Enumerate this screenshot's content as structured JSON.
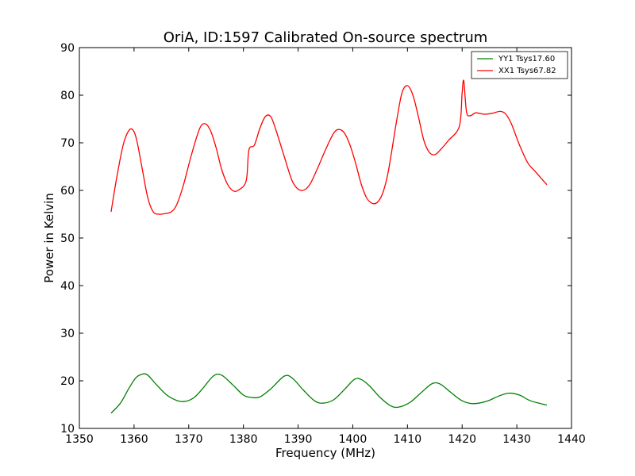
{
  "chart_data": {
    "type": "line",
    "title": "OriA, ID:1597 Calibrated On-source spectrum",
    "xlabel": "Frequency (MHz)",
    "ylabel": "Power in Kelvin",
    "xlim": [
      1350,
      1440
    ],
    "ylim": [
      10,
      90
    ],
    "xticks": [
      1350,
      1360,
      1370,
      1380,
      1390,
      1400,
      1410,
      1420,
      1430,
      1440
    ],
    "yticks": [
      10,
      20,
      30,
      40,
      50,
      60,
      70,
      80,
      90
    ],
    "grid": false,
    "legend_position": "top-right",
    "series": [
      {
        "name": "YY1 Tsys17.60",
        "color": "#008000",
        "x": [
          1355.8,
          1357.5,
          1359.0,
          1360.3,
          1361.5,
          1362.5,
          1364.0,
          1366.0,
          1368.0,
          1369.5,
          1371.0,
          1372.5,
          1374.5,
          1376.0,
          1378.0,
          1380.0,
          1381.5,
          1383.0,
          1385.0,
          1387.5,
          1389.0,
          1391.0,
          1393.0,
          1394.5,
          1396.5,
          1398.5,
          1400.3,
          1401.5,
          1403.0,
          1405.0,
          1407.0,
          1408.5,
          1410.5,
          1412.5,
          1414.5,
          1416.0,
          1418.0,
          1420.0,
          1422.0,
          1424.5,
          1426.5,
          1428.5,
          1430.5,
          1432.5,
          1435.5
        ],
        "y": [
          13.2,
          15.3,
          18.3,
          20.6,
          21.4,
          21.2,
          19.3,
          17.0,
          15.8,
          15.7,
          16.5,
          18.3,
          21.0,
          21.2,
          19.2,
          17.0,
          16.5,
          16.6,
          18.3,
          21.0,
          20.5,
          18.0,
          15.8,
          15.3,
          16.0,
          18.2,
          20.3,
          20.3,
          19.0,
          16.5,
          14.7,
          14.5,
          15.5,
          17.5,
          19.4,
          19.3,
          17.5,
          15.8,
          15.2,
          15.7,
          16.7,
          17.4,
          17.0,
          15.8,
          14.9
        ]
      },
      {
        "name": "XX1 Tsys67.82",
        "color": "#ff0000",
        "x": [
          1355.8,
          1356.8,
          1358.0,
          1359.0,
          1359.8,
          1360.5,
          1361.5,
          1362.5,
          1363.5,
          1364.5,
          1365.5,
          1366.8,
          1367.8,
          1369.0,
          1370.5,
          1372.0,
          1373.0,
          1374.0,
          1375.0,
          1376.0,
          1377.0,
          1378.0,
          1379.0,
          1380.5,
          1381.0,
          1382.0,
          1383.0,
          1384.0,
          1385.0,
          1386.0,
          1387.5,
          1389.0,
          1390.5,
          1392.0,
          1393.5,
          1395.0,
          1396.5,
          1397.5,
          1398.5,
          1399.5,
          1400.5,
          1401.5,
          1402.5,
          1403.5,
          1404.5,
          1405.5,
          1406.5,
          1408.0,
          1409.0,
          1410.0,
          1411.0,
          1412.0,
          1413.0,
          1414.0,
          1415.0,
          1416.0,
          1417.5,
          1419.5,
          1420.0,
          1420.3,
          1420.8,
          1421.5,
          1422.5,
          1424.0,
          1425.5,
          1427.0,
          1428.0,
          1429.0,
          1430.5,
          1432.0,
          1433.5,
          1435.5
        ],
        "y": [
          55.5,
          62.5,
          69.5,
          72.5,
          72.7,
          70.5,
          64.5,
          58.5,
          55.5,
          55.0,
          55.1,
          55.5,
          57.0,
          61.0,
          67.5,
          73.0,
          74.0,
          72.5,
          69.0,
          64.5,
          61.5,
          60.0,
          60.0,
          62.0,
          68.5,
          69.5,
          73.0,
          75.5,
          75.5,
          72.5,
          67.0,
          61.8,
          60.0,
          61.0,
          64.5,
          68.5,
          72.0,
          72.8,
          72.0,
          69.5,
          65.8,
          61.5,
          58.5,
          57.3,
          57.5,
          59.5,
          64.0,
          74.5,
          80.5,
          82.0,
          80.0,
          75.5,
          70.5,
          68.0,
          67.5,
          68.5,
          70.5,
          73.5,
          80.5,
          83.0,
          76.5,
          75.7,
          76.3,
          76.0,
          76.2,
          76.6,
          76.0,
          74.0,
          69.5,
          65.8,
          63.8,
          61.2
        ]
      }
    ]
  }
}
